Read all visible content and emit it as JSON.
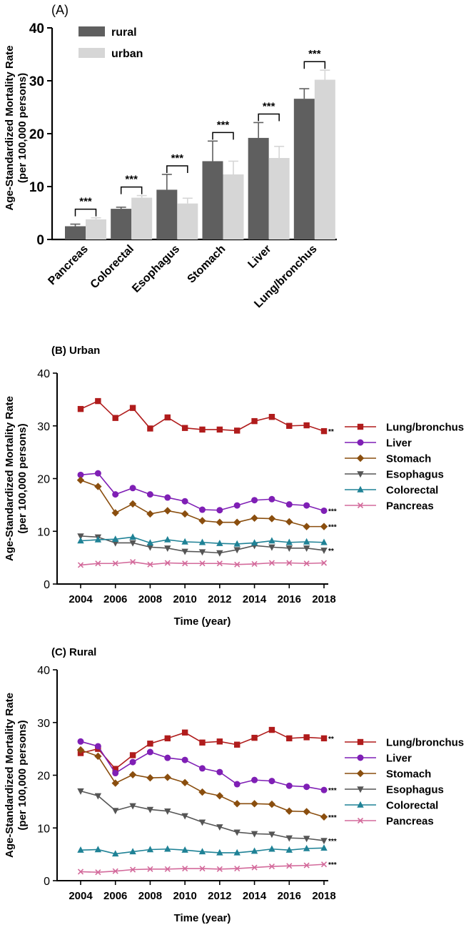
{
  "chart_data": [
    {
      "id": "A",
      "type": "bar",
      "panel_label": "(A)",
      "ylabel": "Age-Standardized Mortality Rate",
      "ylabel2": "(per 100,000 persons)",
      "xlabel": "",
      "ylim": [
        0,
        40
      ],
      "yticks": [
        0,
        10,
        20,
        30,
        40
      ],
      "categories": [
        "Pancreas",
        "Colorectal",
        "Esophagus",
        "Stomach",
        "Liver",
        "Lung/bronchus"
      ],
      "series": [
        {
          "name": "rural",
          "color": "#5f5f5f",
          "values": [
            2.5,
            5.8,
            9.4,
            14.8,
            19.2,
            26.6
          ],
          "errors": [
            0.4,
            0.3,
            2.9,
            3.8,
            2.9,
            1.9
          ]
        },
        {
          "name": "urban",
          "color": "#d6d6d6",
          "values": [
            3.8,
            7.9,
            6.8,
            12.3,
            15.4,
            30.2
          ],
          "errors": [
            0.3,
            0.4,
            1.0,
            2.5,
            2.2,
            1.8
          ]
        }
      ],
      "significance": [
        "***",
        "***",
        "***",
        "***",
        "***",
        "***"
      ],
      "legend": "top-left"
    },
    {
      "id": "B",
      "type": "line",
      "panel_label": "(B) Urban",
      "ylabel": "Age-Standardized Mortality Rate",
      "ylabel2": "(per 100,000 persons)",
      "xlabel": "Time (year)",
      "ylim": [
        0,
        40
      ],
      "yticks": [
        0,
        10,
        20,
        30,
        40
      ],
      "xlim": [
        2004,
        2018
      ],
      "xticks": [
        2004,
        2006,
        2008,
        2010,
        2012,
        2014,
        2016,
        2018
      ],
      "x": [
        2004,
        2005,
        2006,
        2007,
        2008,
        2009,
        2010,
        2011,
        2012,
        2013,
        2014,
        2015,
        2016,
        2017,
        2018
      ],
      "legend": "right",
      "series": [
        {
          "name": "Lung/bronchus",
          "color": "#b01c1c",
          "marker": "square",
          "end_label": "**",
          "values": [
            33.2,
            34.7,
            31.5,
            33.4,
            29.5,
            31.6,
            29.6,
            29.3,
            29.3,
            29.1,
            30.9,
            31.7,
            30.0,
            30.1,
            29.0
          ]
        },
        {
          "name": "Liver",
          "color": "#7f1fb5",
          "marker": "circle",
          "end_label": "***",
          "values": [
            20.7,
            21.0,
            17.0,
            18.2,
            17.0,
            16.4,
            15.7,
            14.1,
            14.0,
            14.9,
            15.9,
            16.1,
            15.1,
            14.9,
            13.9
          ]
        },
        {
          "name": "Stomach",
          "color": "#8a4e0e",
          "marker": "diamond",
          "end_label": "***",
          "values": [
            19.7,
            18.5,
            13.5,
            15.2,
            13.3,
            13.9,
            13.3,
            12.0,
            11.7,
            11.7,
            12.5,
            12.4,
            11.8,
            10.9,
            10.9
          ]
        },
        {
          "name": "Esophagus",
          "color": "#555555",
          "marker": "triangle-down",
          "end_label": "**",
          "values": [
            9.1,
            8.9,
            7.8,
            7.8,
            7.0,
            6.8,
            6.2,
            6.1,
            5.9,
            6.5,
            7.3,
            7.0,
            6.8,
            6.8,
            6.4
          ]
        },
        {
          "name": "Colorectal",
          "color": "#1f8296",
          "marker": "triangle-up",
          "end_label": "",
          "values": [
            8.2,
            8.4,
            8.5,
            8.9,
            7.8,
            8.4,
            8.0,
            7.9,
            7.7,
            7.6,
            7.8,
            8.2,
            7.9,
            8.0,
            7.9
          ]
        },
        {
          "name": "Pancreas",
          "color": "#d36a9b",
          "marker": "x",
          "end_label": "",
          "values": [
            3.6,
            3.9,
            3.9,
            4.2,
            3.7,
            4.0,
            3.9,
            3.9,
            3.9,
            3.7,
            3.8,
            4.0,
            4.0,
            3.9,
            4.0
          ]
        }
      ]
    },
    {
      "id": "C",
      "type": "line",
      "panel_label": "(C) Rural",
      "ylabel": "Age-Standardized Mortality Rate",
      "ylabel2": "(per 100,000 persons)",
      "xlabel": "Time (year)",
      "ylim": [
        0,
        40
      ],
      "yticks": [
        0,
        10,
        20,
        30,
        40
      ],
      "xlim": [
        2004,
        2018
      ],
      "xticks": [
        2004,
        2006,
        2008,
        2010,
        2012,
        2014,
        2016,
        2018
      ],
      "x": [
        2004,
        2005,
        2006,
        2007,
        2008,
        2009,
        2010,
        2011,
        2012,
        2013,
        2014,
        2015,
        2016,
        2017,
        2018
      ],
      "legend": "right",
      "series": [
        {
          "name": "Lung/bronchus",
          "color": "#b01c1c",
          "marker": "square",
          "end_label": "**",
          "values": [
            24.2,
            25.0,
            21.2,
            23.8,
            26.0,
            27.0,
            28.1,
            26.2,
            26.4,
            25.8,
            27.1,
            28.6,
            27.0,
            27.2,
            27.0
          ]
        },
        {
          "name": "Liver",
          "color": "#7f1fb5",
          "marker": "circle",
          "end_label": "***",
          "values": [
            26.4,
            25.5,
            20.4,
            22.5,
            24.4,
            23.3,
            22.9,
            21.3,
            20.6,
            18.3,
            19.1,
            18.9,
            18.0,
            17.8,
            17.2
          ]
        },
        {
          "name": "Stomach",
          "color": "#8a4e0e",
          "marker": "diamond",
          "end_label": "***",
          "values": [
            24.8,
            23.6,
            18.5,
            20.1,
            19.5,
            19.6,
            18.6,
            16.8,
            16.1,
            14.6,
            14.6,
            14.5,
            13.2,
            13.1,
            12.1
          ]
        },
        {
          "name": "Esophagus",
          "color": "#555555",
          "marker": "triangle-down",
          "end_label": "***",
          "values": [
            17.0,
            16.1,
            13.3,
            14.2,
            13.5,
            13.2,
            12.3,
            11.1,
            10.2,
            9.2,
            8.9,
            8.8,
            8.1,
            8.0,
            7.6
          ]
        },
        {
          "name": "Colorectal",
          "color": "#1f8296",
          "marker": "triangle-up",
          "end_label": "",
          "values": [
            5.8,
            5.9,
            5.1,
            5.5,
            5.9,
            6.0,
            5.8,
            5.5,
            5.3,
            5.3,
            5.6,
            6.0,
            5.8,
            6.1,
            6.2
          ]
        },
        {
          "name": "Pancreas",
          "color": "#d36a9b",
          "marker": "x",
          "end_label": "***",
          "values": [
            1.7,
            1.6,
            1.8,
            2.1,
            2.2,
            2.2,
            2.3,
            2.3,
            2.2,
            2.3,
            2.5,
            2.7,
            2.8,
            2.9,
            3.1
          ]
        }
      ]
    }
  ]
}
